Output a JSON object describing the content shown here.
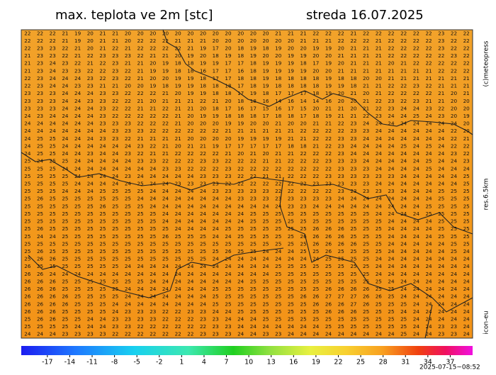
{
  "header": {
    "title": "max. teplota ve 2m [stc]",
    "date": "streda 16.07.2025"
  },
  "side_labels": {
    "copyright": "(c)meteopress",
    "resolution": "res.6.5km",
    "model": "icon-eu"
  },
  "timestamp": "2025-07-15~08:52",
  "colorbar": {
    "lim": [
      -20.5,
      40
    ],
    "ticks": [
      -17,
      -14,
      -11,
      -8,
      -5,
      -2,
      1,
      4,
      7,
      10,
      13,
      16,
      19,
      22,
      25,
      28,
      31,
      34,
      37
    ]
  },
  "grid": {
    "values": [
      [
        22,
        22,
        22,
        21,
        19,
        20,
        21,
        21,
        20,
        20,
        20,
        20,
        20,
        20,
        20,
        20,
        20,
        20,
        20,
        20,
        21,
        21,
        21,
        22,
        22,
        22,
        21,
        22,
        22,
        22,
        22,
        22,
        22,
        23,
        22,
        22
      ],
      [
        22,
        22,
        22,
        21,
        19,
        20,
        21,
        21,
        20,
        22,
        22,
        22,
        21,
        21,
        21,
        20,
        20,
        20,
        20,
        20,
        20,
        20,
        21,
        21,
        21,
        22,
        22,
        22,
        21,
        22,
        22,
        22,
        22,
        23,
        22,
        22
      ],
      [
        22,
        23,
        23,
        22,
        21,
        20,
        21,
        22,
        21,
        22,
        22,
        22,
        22,
        21,
        19,
        17,
        20,
        18,
        19,
        18,
        19,
        20,
        20,
        19,
        19,
        20,
        21,
        21,
        21,
        22,
        22,
        22,
        22,
        23,
        22,
        22
      ],
      [
        21,
        23,
        23,
        22,
        21,
        22,
        23,
        23,
        23,
        22,
        21,
        21,
        20,
        19,
        20,
        18,
        19,
        18,
        19,
        20,
        20,
        19,
        19,
        20,
        20,
        21,
        21,
        21,
        21,
        22,
        22,
        22,
        22,
        22,
        23,
        22
      ],
      [
        21,
        23,
        24,
        23,
        22,
        21,
        22,
        23,
        21,
        21,
        20,
        19,
        18,
        18,
        19,
        19,
        17,
        17,
        18,
        19,
        19,
        19,
        18,
        17,
        19,
        20,
        21,
        21,
        21,
        20,
        21,
        22,
        22,
        22,
        22,
        22
      ],
      [
        21,
        23,
        24,
        23,
        23,
        22,
        22,
        23,
        22,
        21,
        19,
        19,
        18,
        18,
        16,
        17,
        17,
        16,
        18,
        19,
        19,
        19,
        19,
        20,
        20,
        21,
        21,
        21,
        21,
        21,
        21,
        21,
        21,
        22,
        22,
        22
      ],
      [
        22,
        23,
        24,
        24,
        24,
        23,
        22,
        23,
        22,
        21,
        20,
        20,
        19,
        19,
        18,
        17,
        17,
        18,
        18,
        19,
        18,
        18,
        18,
        18,
        19,
        18,
        18,
        20,
        20,
        21,
        21,
        21,
        21,
        21,
        21,
        21
      ],
      [
        22,
        23,
        24,
        24,
        23,
        23,
        21,
        21,
        20,
        20,
        19,
        18,
        19,
        19,
        18,
        18,
        18,
        17,
        18,
        19,
        18,
        18,
        18,
        18,
        19,
        19,
        18,
        21,
        21,
        22,
        22,
        23,
        22,
        21,
        21,
        21
      ],
      [
        23,
        23,
        23,
        24,
        24,
        24,
        23,
        23,
        22,
        22,
        22,
        21,
        20,
        19,
        19,
        18,
        18,
        17,
        19,
        18,
        17,
        17,
        17,
        18,
        19,
        20,
        21,
        20,
        21,
        22,
        22,
        22,
        22,
        21,
        20,
        21
      ],
      [
        23,
        23,
        23,
        24,
        24,
        23,
        23,
        22,
        22,
        21,
        20,
        21,
        21,
        21,
        22,
        21,
        20,
        18,
        18,
        16,
        14,
        16,
        14,
        14,
        16,
        20,
        20,
        21,
        22,
        23,
        22,
        23,
        21,
        21,
        20,
        20
      ],
      [
        23,
        23,
        23,
        24,
        24,
        24,
        23,
        22,
        22,
        21,
        21,
        22,
        21,
        21,
        20,
        18,
        17,
        16,
        17,
        15,
        16,
        17,
        15,
        20,
        21,
        21,
        20,
        21,
        22,
        23,
        24,
        24,
        23,
        22,
        20,
        20
      ],
      [
        24,
        23,
        24,
        24,
        24,
        24,
        23,
        22,
        22,
        22,
        22,
        22,
        21,
        20,
        19,
        19,
        18,
        18,
        18,
        17,
        18,
        18,
        17,
        18,
        19,
        21,
        21,
        22,
        23,
        24,
        24,
        25,
        24,
        23,
        20,
        19
      ],
      [
        24,
        24,
        24,
        24,
        24,
        24,
        23,
        23,
        23,
        22,
        22,
        22,
        21,
        20,
        20,
        20,
        19,
        19,
        20,
        20,
        21,
        20,
        20,
        21,
        21,
        22,
        23,
        24,
        24,
        24,
        24,
        24,
        24,
        24,
        24,
        20
      ],
      [
        24,
        24,
        24,
        24,
        24,
        24,
        24,
        23,
        23,
        23,
        22,
        22,
        22,
        22,
        22,
        22,
        21,
        21,
        21,
        21,
        21,
        21,
        22,
        22,
        22,
        22,
        23,
        23,
        24,
        24,
        24,
        24,
        24,
        24,
        22,
        20
      ],
      [
        24,
        25,
        25,
        24,
        24,
        24,
        23,
        23,
        22,
        21,
        21,
        21,
        21,
        20,
        20,
        20,
        20,
        19,
        19,
        19,
        19,
        21,
        21,
        22,
        22,
        23,
        23,
        24,
        24,
        24,
        24,
        24,
        24,
        24,
        22,
        21
      ],
      [
        24,
        25,
        25,
        24,
        24,
        24,
        24,
        24,
        24,
        23,
        22,
        21,
        20,
        21,
        21,
        19,
        17,
        17,
        17,
        17,
        17,
        18,
        18,
        21,
        22,
        23,
        24,
        24,
        24,
        24,
        25,
        24,
        25,
        24,
        22,
        22
      ],
      [
        24,
        25,
        25,
        24,
        24,
        23,
        24,
        24,
        23,
        22,
        21,
        21,
        22,
        22,
        22,
        22,
        21,
        20,
        21,
        20,
        21,
        21,
        22,
        22,
        22,
        23,
        24,
        24,
        24,
        24,
        24,
        24,
        24,
        24,
        23,
        22
      ],
      [
        25,
        24,
        25,
        25,
        24,
        24,
        24,
        24,
        24,
        23,
        23,
        22,
        22,
        22,
        23,
        23,
        22,
        22,
        22,
        21,
        21,
        22,
        22,
        22,
        23,
        23,
        23,
        24,
        24,
        24,
        24,
        24,
        25,
        24,
        24,
        23
      ],
      [
        25,
        25,
        25,
        24,
        24,
        24,
        24,
        24,
        24,
        24,
        24,
        23,
        23,
        22,
        22,
        22,
        23,
        22,
        22,
        22,
        22,
        22,
        22,
        22,
        22,
        23,
        23,
        23,
        24,
        24,
        24,
        24,
        25,
        24,
        24,
        24
      ],
      [
        25,
        25,
        25,
        25,
        24,
        24,
        24,
        24,
        23,
        24,
        24,
        24,
        24,
        24,
        23,
        23,
        23,
        22,
        22,
        21,
        21,
        22,
        22,
        22,
        23,
        23,
        23,
        23,
        23,
        23,
        24,
        24,
        24,
        24,
        24,
        25
      ],
      [
        25,
        25,
        25,
        25,
        24,
        24,
        24,
        24,
        24,
        25,
        24,
        24,
        23,
        23,
        23,
        23,
        22,
        22,
        22,
        22,
        22,
        22,
        22,
        23,
        23,
        23,
        23,
        23,
        24,
        24,
        24,
        24,
        24,
        24,
        24,
        25
      ],
      [
        25,
        25,
        25,
        24,
        24,
        24,
        25,
        25,
        25,
        25,
        24,
        24,
        24,
        24,
        24,
        23,
        23,
        23,
        23,
        23,
        22,
        22,
        22,
        22,
        22,
        23,
        23,
        23,
        23,
        23,
        24,
        24,
        24,
        25,
        25,
        25
      ],
      [
        25,
        26,
        25,
        25,
        25,
        25,
        25,
        25,
        25,
        24,
        24,
        24,
        24,
        24,
        24,
        24,
        24,
        23,
        23,
        23,
        23,
        23,
        23,
        23,
        23,
        24,
        24,
        24,
        24,
        24,
        24,
        24,
        24,
        25,
        25,
        25
      ],
      [
        25,
        25,
        25,
        25,
        25,
        25,
        26,
        25,
        25,
        25,
        24,
        24,
        24,
        24,
        24,
        24,
        24,
        24,
        24,
        24,
        24,
        23,
        23,
        24,
        24,
        24,
        24,
        24,
        24,
        24,
        24,
        24,
        25,
        25,
        25,
        25
      ],
      [
        25,
        25,
        25,
        25,
        25,
        25,
        25,
        25,
        25,
        25,
        25,
        24,
        24,
        24,
        24,
        24,
        24,
        24,
        25,
        25,
        25,
        25,
        25,
        25,
        25,
        25,
        25,
        25,
        24,
        24,
        24,
        24,
        25,
        25,
        25,
        25
      ],
      [
        25,
        25,
        25,
        25,
        25,
        25,
        25,
        25,
        25,
        25,
        25,
        24,
        24,
        24,
        24,
        24,
        24,
        24,
        25,
        25,
        25,
        25,
        25,
        25,
        25,
        25,
        25,
        25,
        25,
        24,
        24,
        24,
        24,
        25,
        25,
        25
      ],
      [
        25,
        26,
        25,
        25,
        25,
        25,
        25,
        25,
        25,
        25,
        25,
        25,
        24,
        24,
        24,
        24,
        25,
        25,
        25,
        25,
        25,
        25,
        25,
        26,
        26,
        26,
        25,
        25,
        25,
        24,
        24,
        24,
        24,
        25,
        25,
        25
      ],
      [
        25,
        24,
        24,
        25,
        25,
        25,
        25,
        25,
        25,
        25,
        25,
        26,
        25,
        25,
        25,
        24,
        24,
        25,
        25,
        25,
        25,
        25,
        26,
        26,
        26,
        26,
        25,
        25,
        25,
        24,
        24,
        24,
        24,
        25,
        25,
        25
      ],
      [
        25,
        25,
        25,
        25,
        25,
        25,
        25,
        25,
        25,
        25,
        25,
        25,
        25,
        25,
        25,
        25,
        25,
        25,
        25,
        25,
        25,
        25,
        25,
        26,
        26,
        26,
        26,
        25,
        25,
        24,
        24,
        24,
        24,
        24,
        25,
        25
      ],
      [
        25,
        26,
        25,
        25,
        25,
        25,
        25,
        25,
        25,
        25,
        25,
        25,
        25,
        25,
        25,
        25,
        26,
        25,
        25,
        24,
        24,
        24,
        25,
        25,
        26,
        25,
        25,
        25,
        25,
        24,
        24,
        24,
        24,
        24,
        25,
        24
      ],
      [
        25,
        26,
        26,
        25,
        25,
        25,
        25,
        25,
        25,
        25,
        25,
        25,
        25,
        25,
        25,
        24,
        24,
        24,
        24,
        24,
        24,
        24,
        24,
        24,
        25,
        25,
        25,
        25,
        24,
        24,
        24,
        24,
        24,
        24,
        24,
        24
      ],
      [
        26,
        25,
        25,
        25,
        25,
        25,
        25,
        25,
        24,
        24,
        24,
        24,
        24,
        24,
        24,
        24,
        24,
        24,
        24,
        24,
        25,
        25,
        25,
        25,
        25,
        25,
        25,
        25,
        24,
        24,
        24,
        24,
        24,
        24,
        24,
        24
      ],
      [
        26,
        26,
        24,
        24,
        24,
        24,
        24,
        24,
        24,
        24,
        24,
        24,
        24,
        24,
        24,
        24,
        24,
        24,
        24,
        24,
        25,
        25,
        25,
        25,
        25,
        25,
        25,
        25,
        24,
        24,
        24,
        24,
        24,
        24,
        24,
        24
      ],
      [
        26,
        26,
        26,
        25,
        25,
        25,
        25,
        25,
        25,
        25,
        24,
        24,
        24,
        24,
        24,
        24,
        24,
        24,
        25,
        25,
        25,
        25,
        25,
        25,
        25,
        25,
        25,
        25,
        25,
        24,
        24,
        24,
        24,
        24,
        24,
        24
      ],
      [
        26,
        26,
        26,
        25,
        25,
        25,
        25,
        25,
        24,
        24,
        24,
        24,
        24,
        24,
        24,
        25,
        25,
        25,
        25,
        25,
        25,
        25,
        25,
        25,
        26,
        26,
        26,
        26,
        25,
        25,
        24,
        24,
        24,
        24,
        24,
        24
      ],
      [
        26,
        26,
        26,
        26,
        25,
        25,
        25,
        25,
        24,
        24,
        24,
        24,
        24,
        24,
        24,
        25,
        25,
        25,
        25,
        25,
        25,
        25,
        26,
        26,
        27,
        27,
        27,
        26,
        26,
        25,
        24,
        24,
        24,
        24,
        24,
        24
      ],
      [
        26,
        26,
        26,
        26,
        25,
        25,
        25,
        24,
        24,
        24,
        24,
        24,
        24,
        24,
        24,
        25,
        25,
        25,
        25,
        25,
        25,
        25,
        25,
        26,
        26,
        26,
        27,
        26,
        25,
        25,
        25,
        24,
        24,
        24,
        24,
        24
      ],
      [
        26,
        26,
        26,
        25,
        25,
        25,
        25,
        24,
        23,
        23,
        23,
        22,
        22,
        23,
        23,
        24,
        24,
        25,
        25,
        25,
        25,
        25,
        25,
        25,
        26,
        26,
        26,
        25,
        25,
        25,
        24,
        24,
        24,
        24,
        24,
        24
      ],
      [
        25,
        26,
        26,
        25,
        25,
        24,
        24,
        23,
        23,
        23,
        23,
        22,
        22,
        22,
        23,
        23,
        24,
        24,
        24,
        25,
        25,
        25,
        25,
        25,
        25,
        25,
        25,
        25,
        25,
        25,
        25,
        24,
        24,
        24,
        24,
        24
      ],
      [
        25,
        25,
        25,
        25,
        24,
        24,
        24,
        23,
        23,
        22,
        22,
        22,
        22,
        22,
        22,
        23,
        23,
        24,
        24,
        24,
        24,
        24,
        24,
        24,
        25,
        25,
        25,
        25,
        25,
        25,
        25,
        24,
        24,
        23,
        23,
        24
      ],
      [
        24,
        24,
        24,
        23,
        23,
        23,
        23,
        22,
        22,
        22,
        22,
        22,
        22,
        22,
        23,
        23,
        23,
        24,
        24,
        23,
        23,
        24,
        24,
        24,
        24,
        24,
        24,
        24,
        24,
        24,
        25,
        24,
        24,
        23,
        23,
        24
      ]
    ]
  }
}
